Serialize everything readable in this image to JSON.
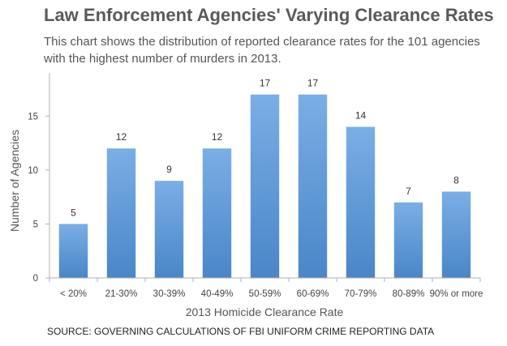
{
  "title": "Law Enforcement Agencies' Varying Clearance Rates",
  "subtitle": "This chart shows the distribution of reported clearance rates for the 101 agencies with the highest number of murders in 2013.",
  "source": "SOURCE: GOVERNING CALCULATIONS OF FBI UNIFORM CRIME REPORTING DATA",
  "colors": {
    "bar_top": "#7aaee6",
    "bar_bottom": "#4a86c8",
    "axis": "#b0b0b0",
    "text": "#555555"
  },
  "chart_data": {
    "type": "bar",
    "title": "Law Enforcement Agencies' Varying Clearance Rates",
    "xlabel": "2013  Homicide Clearance Rate",
    "ylabel": "Number of Agencies",
    "categories": [
      "< 20%",
      "21-30%",
      "30-39%",
      "40-49%",
      "50-59%",
      "60-69%",
      "70-79%",
      "80-89%",
      "90% or more"
    ],
    "values": [
      5,
      12,
      9,
      12,
      17,
      17,
      14,
      7,
      8
    ],
    "ylim": [
      0,
      19
    ],
    "yticks": [
      0,
      5,
      10,
      15
    ],
    "grid": false,
    "data_labels": true,
    "legend": "none"
  }
}
